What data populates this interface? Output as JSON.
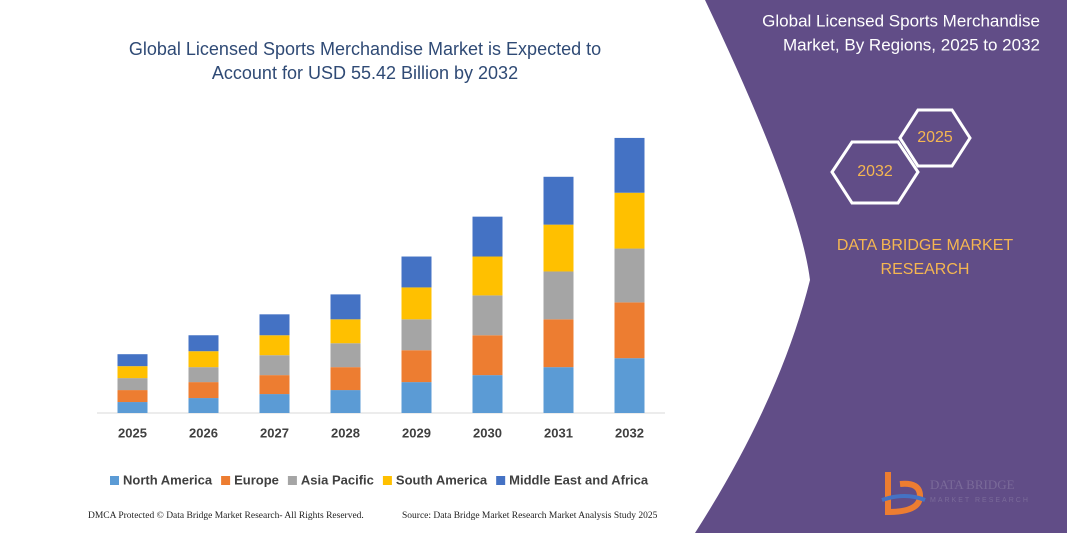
{
  "chart_data": {
    "type": "stacked_bar",
    "title": [
      "Global Licensed Sports Merchandise Market is Expected to",
      "Account for USD 55.42 Billion by 2032"
    ],
    "categories": [
      "2025",
      "2026",
      "2027",
      "2028",
      "2029",
      "2030",
      "2031",
      "2032"
    ],
    "series": [
      {
        "name": "North America",
        "color": "#5b9bd5",
        "values": [
          2.2,
          3.0,
          3.8,
          4.6,
          6.2,
          7.6,
          9.2,
          11.0
        ]
      },
      {
        "name": "Europe",
        "color": "#ed7d31",
        "values": [
          2.4,
          3.2,
          3.8,
          4.6,
          6.4,
          8.0,
          9.6,
          11.2
        ]
      },
      {
        "name": "Asia Pacific",
        "color": "#a5a5a5",
        "values": [
          2.4,
          3.0,
          4.0,
          4.8,
          6.2,
          8.0,
          9.6,
          10.8
        ]
      },
      {
        "name": "South America",
        "color": "#ffc000",
        "values": [
          2.4,
          3.2,
          4.0,
          4.8,
          6.4,
          7.8,
          9.4,
          11.2
        ]
      },
      {
        "name": "Middle East and Africa",
        "color": "#4472c4",
        "values": [
          2.4,
          3.2,
          4.2,
          5.0,
          6.2,
          8.0,
          9.6,
          11.0
        ]
      }
    ],
    "ylim": [
      0,
      60
    ]
  },
  "side_panel": {
    "heading": [
      "Global Licensed Sports Merchandise",
      "Market, By Regions, 2025 to 2032"
    ],
    "hex_start": "2025",
    "hex_end": "2032",
    "brand": [
      "DATA BRIDGE MARKET",
      "RESEARCH"
    ],
    "logo": [
      "DATA BRIDGE",
      "MARKET RESEARCH"
    ]
  },
  "footer": {
    "left": "DMCA Protected © Data Bridge Market Research- All Rights Reserved.",
    "right": "Source: Data Bridge Market Research Market Analysis Study 2025"
  }
}
